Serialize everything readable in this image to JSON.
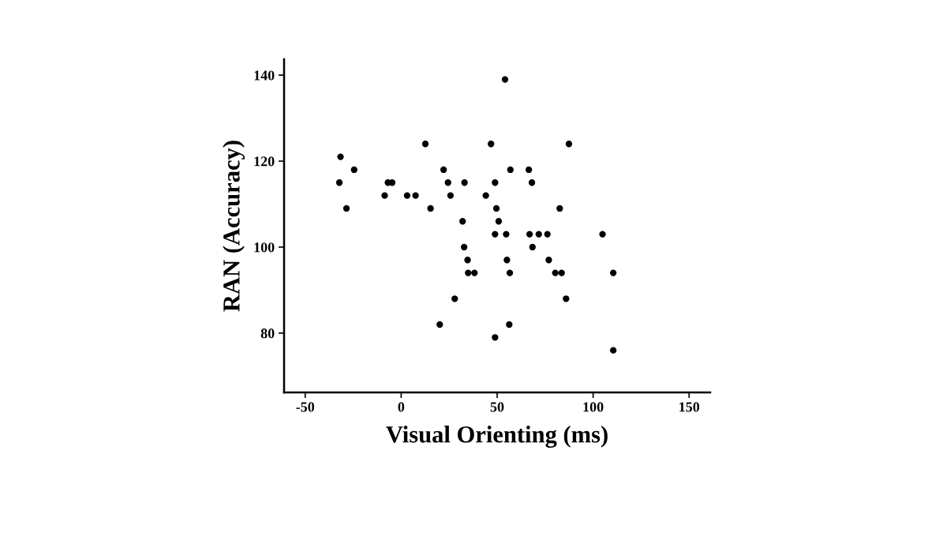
{
  "chart_data": {
    "type": "scatter",
    "xlabel": "Visual Orienting (ms)",
    "ylabel": "RAN (Accuracy)",
    "xlim": [
      -61,
      161
    ],
    "ylim": [
      66.2,
      143.7
    ],
    "xticks": [
      -50,
      0,
      50,
      100,
      150
    ],
    "yticks": [
      80,
      100,
      120,
      140
    ],
    "grid": false,
    "legend": false,
    "marker": "circle",
    "series": [
      {
        "color": "#000000",
        "x": [
          -31.6,
          -24.5,
          -32.2,
          -28.5,
          -8.6,
          -6.9,
          -4.7,
          3.1,
          7.5,
          12.6,
          15.3,
          22.1,
          24.4,
          25.7,
          33.0,
          32.0,
          32.8,
          34.6,
          34.9,
          38.2,
          27.9,
          20.1,
          46.8,
          48.9,
          44.1,
          49.6,
          50.8,
          48.9,
          48.9,
          54.1,
          87.4,
          56.9,
          66.5,
          68.1,
          82.6,
          54.7,
          66.9,
          71.7,
          76.2,
          104.9,
          68.4,
          55.1,
          76.9,
          56.6,
          80.3,
          83.6,
          110.5,
          85.9,
          56.3,
          110.5
        ],
        "values": [
          121,
          118,
          115,
          109,
          112,
          115,
          115,
          112,
          112,
          124,
          109,
          118,
          115,
          112,
          115,
          106,
          100,
          97,
          94,
          94,
          88,
          82,
          124,
          115,
          112,
          109,
          106,
          103,
          79,
          139,
          124,
          118,
          118,
          115,
          109,
          103,
          103,
          103,
          103,
          103,
          100,
          97,
          97,
          94,
          94,
          94,
          94,
          88,
          82,
          76
        ]
      }
    ]
  }
}
